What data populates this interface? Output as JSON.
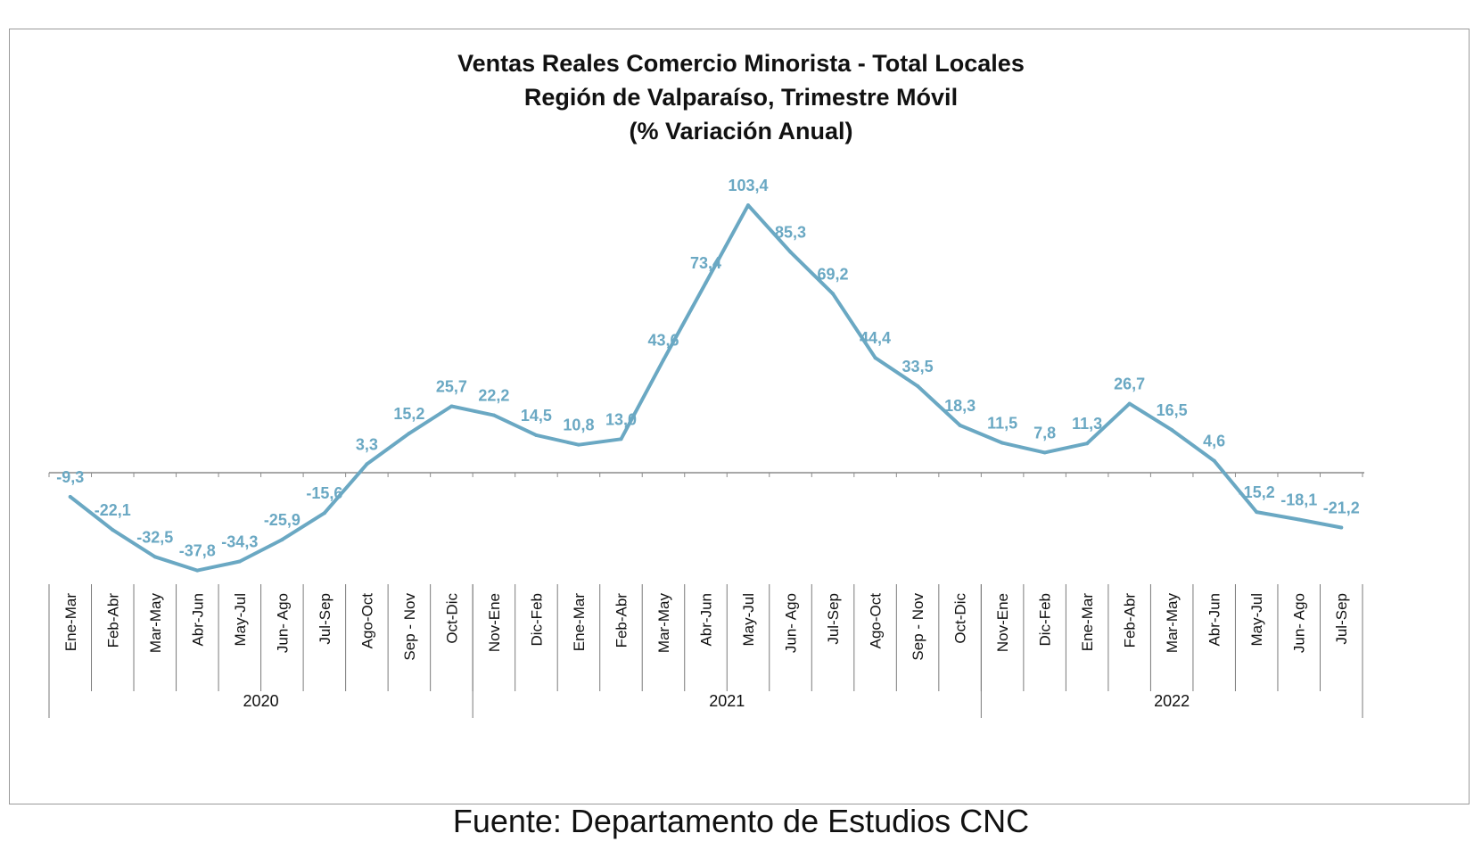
{
  "chart_data": {
    "type": "line",
    "title_lines": [
      "Ventas Reales Comercio Minorista - Total Locales",
      "Región de Valparaíso, Trimestre Móvil",
      "(% Variación Anual)"
    ],
    "categories": [
      "Ene-Mar",
      "Feb-Abr",
      "Mar-May",
      "Abr-Jun",
      "May-Jul",
      "Jun- Ago",
      "Jul-Sep",
      "Ago-Oct",
      "Sep - Nov",
      "Oct-Dic",
      "Nov-Ene",
      "Dic-Feb",
      "Ene-Mar",
      "Feb-Abr",
      "Mar-May",
      "Abr-Jun",
      "May-Jul",
      "Jun- Ago",
      "Jul-Sep",
      "Ago-Oct",
      "Sep - Nov",
      "Oct-Dic",
      "Nov-Ene",
      "Dic-Feb",
      "Ene-Mar",
      "Feb-Abr",
      "Mar-May",
      "Abr-Jun",
      "May-Jul",
      "Jun- Ago",
      "Jul-Sep"
    ],
    "year_groups": [
      {
        "label": "2020",
        "count": 10
      },
      {
        "label": "2021",
        "count": 12
      },
      {
        "label": "2022",
        "count": 9
      }
    ],
    "series": [
      {
        "values": [
          -9.3,
          -22.1,
          -32.5,
          -37.8,
          -34.3,
          -25.9,
          -15.6,
          3.3,
          15.2,
          25.7,
          22.2,
          14.5,
          10.8,
          13.0,
          43.6,
          73.4,
          103.4,
          85.3,
          69.2,
          44.4,
          33.5,
          18.3,
          11.5,
          7.8,
          11.3,
          26.7,
          16.5,
          4.6,
          -15.2,
          -18.1,
          -21.2
        ]
      }
    ],
    "data_labels": [
      "-9,3",
      "-22,1",
      "-32,5",
      "-37,8",
      "-34,3",
      "-25,9",
      "-15,6",
      "3,3",
      "15,2",
      "25,7",
      "22,2",
      "14,5",
      "10,8",
      "13,0",
      "43,6",
      "73,4",
      "103,4",
      "85,3",
      "69,2",
      "44,4",
      "33,5",
      "18,3",
      "11,5",
      "7,8",
      "11,3",
      "26,7",
      "16,5",
      "4,6",
      "-15,2",
      "-18,1",
      "-21,2"
    ],
    "color": "#6aa8c3",
    "axis_color": "#8c8c8c",
    "grid": false,
    "legend": "none"
  },
  "source_note": "Fuente: Departamento de Estudios CNC"
}
